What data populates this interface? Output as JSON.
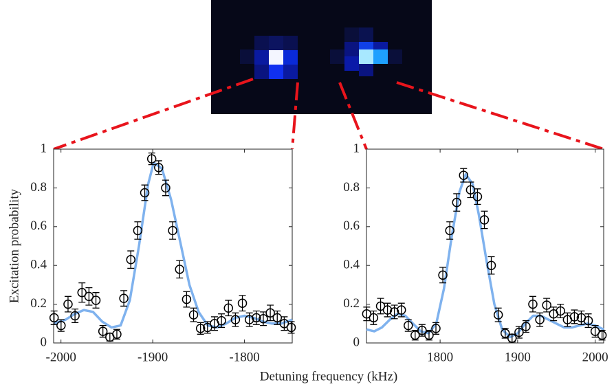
{
  "chart_data": [
    {
      "type": "scatter",
      "ylabel": "Excitation probability",
      "xlabel": "Detuning frequency (kHz)",
      "xlim": [
        -2008,
        -1748
      ],
      "ylim": [
        0,
        1
      ],
      "xticks": [
        -2000,
        -1900,
        -1800
      ],
      "yticks": [
        0,
        0.2,
        0.4,
        0.6,
        0.8,
        1
      ],
      "color": "#000000",
      "x": [
        -2007.5,
        -1999.9,
        -1992.3,
        -1984.7,
        -1977.1,
        -1969.5,
        -1961.9,
        -1954.3,
        -1946.7,
        -1939.1,
        -1931.5,
        -1923.9,
        -1916.3,
        -1908.7,
        -1901.1,
        -1893.5,
        -1885.9,
        -1878.3,
        -1870.7,
        -1863.1,
        -1855.5,
        -1847.9,
        -1840.3,
        -1832.7,
        -1825.1,
        -1817.5,
        -1809.9,
        -1802.3,
        -1794.7,
        -1787.1,
        -1779.5,
        -1771.9,
        -1764.3,
        -1756.7,
        -1749.1
      ],
      "values": [
        0.13,
        0.09,
        0.2,
        0.14,
        0.26,
        0.24,
        0.22,
        0.06,
        0.03,
        0.045,
        0.23,
        0.43,
        0.58,
        0.775,
        0.95,
        0.905,
        0.8,
        0.58,
        0.38,
        0.225,
        0.145,
        0.075,
        0.08,
        0.1,
        0.115,
        0.18,
        0.12,
        0.205,
        0.12,
        0.13,
        0.125,
        0.155,
        0.13,
        0.1,
        0.08
      ],
      "errors": [
        0.035,
        0.03,
        0.04,
        0.035,
        0.05,
        0.045,
        0.04,
        0.03,
        0.02,
        0.025,
        0.04,
        0.045,
        0.045,
        0.04,
        0.03,
        0.035,
        0.04,
        0.045,
        0.045,
        0.04,
        0.035,
        0.03,
        0.03,
        0.035,
        0.035,
        0.04,
        0.035,
        0.04,
        0.035,
        0.035,
        0.035,
        0.04,
        0.035,
        0.035,
        0.03
      ],
      "fit": {
        "color": "#7fb2ee",
        "x": [
          -2008,
          -1995,
          -1985,
          -1975,
          -1965,
          -1955,
          -1945,
          -1935,
          -1925,
          -1915,
          -1905,
          -1899,
          -1890,
          -1880,
          -1870,
          -1860,
          -1850,
          -1840,
          -1830,
          -1820,
          -1810,
          -1800,
          -1790,
          -1780,
          -1770,
          -1760,
          -1748
        ],
        "values": [
          0.1,
          0.12,
          0.15,
          0.17,
          0.16,
          0.11,
          0.08,
          0.09,
          0.22,
          0.5,
          0.82,
          0.93,
          0.9,
          0.74,
          0.52,
          0.3,
          0.16,
          0.09,
          0.08,
          0.1,
          0.13,
          0.14,
          0.13,
          0.11,
          0.1,
          0.1,
          0.12
        ]
      }
    },
    {
      "type": "scatter",
      "xlim": [
        1705,
        2011
      ],
      "ylim": [
        0,
        1
      ],
      "xticks": [
        1800,
        1900,
        2000
      ],
      "yticks": [
        0,
        0.2,
        0.4,
        0.6,
        0.8,
        1
      ],
      "color": "#000000",
      "x": [
        1705.3,
        1714.2,
        1723.2,
        1732.1,
        1741.0,
        1750.0,
        1758.9,
        1767.8,
        1776.7,
        1785.7,
        1794.6,
        1803.5,
        1812.5,
        1821.4,
        1830.3,
        1839.3,
        1848.2,
        1857.1,
        1866.0,
        1875.0,
        1883.9,
        1892.8,
        1901.8,
        1910.7,
        1919.6,
        1928.6,
        1937.5,
        1946.4,
        1955.3,
        1964.3,
        1973.2,
        1982.1,
        1991.1,
        2000.0,
        2008.9
      ],
      "values": [
        0.15,
        0.13,
        0.19,
        0.17,
        0.16,
        0.17,
        0.09,
        0.04,
        0.065,
        0.04,
        0.075,
        0.35,
        0.58,
        0.725,
        0.865,
        0.79,
        0.755,
        0.635,
        0.4,
        0.145,
        0.05,
        0.025,
        0.055,
        0.085,
        0.2,
        0.12,
        0.195,
        0.15,
        0.165,
        0.12,
        0.135,
        0.13,
        0.115,
        0.06,
        0.04
      ],
      "errors": [
        0.035,
        0.035,
        0.04,
        0.035,
        0.035,
        0.035,
        0.03,
        0.025,
        0.03,
        0.025,
        0.03,
        0.04,
        0.045,
        0.045,
        0.035,
        0.04,
        0.04,
        0.045,
        0.045,
        0.035,
        0.025,
        0.02,
        0.03,
        0.03,
        0.04,
        0.035,
        0.035,
        0.035,
        0.035,
        0.035,
        0.035,
        0.035,
        0.035,
        0.03,
        0.025
      ],
      "fit": {
        "color": "#7fb2ee",
        "x": [
          1705,
          1715,
          1725,
          1735,
          1745,
          1755,
          1765,
          1775,
          1785,
          1795,
          1805,
          1815,
          1825,
          1833,
          1842,
          1850,
          1860,
          1870,
          1880,
          1890,
          1900,
          1910,
          1920,
          1930,
          1940,
          1950,
          1960,
          1970,
          1980,
          1990,
          2000,
          2011
        ],
        "values": [
          0.07,
          0.06,
          0.08,
          0.12,
          0.15,
          0.14,
          0.1,
          0.06,
          0.05,
          0.1,
          0.28,
          0.55,
          0.78,
          0.87,
          0.82,
          0.66,
          0.42,
          0.2,
          0.07,
          0.03,
          0.05,
          0.1,
          0.14,
          0.14,
          0.12,
          0.1,
          0.08,
          0.08,
          0.09,
          0.1,
          0.09,
          0.07
        ]
      }
    }
  ]
}
